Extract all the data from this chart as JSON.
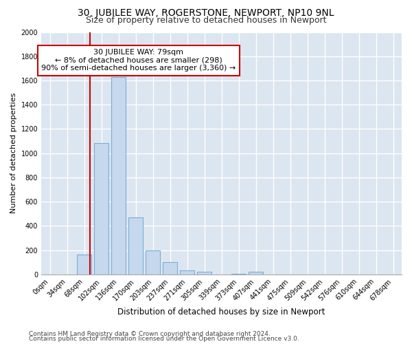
{
  "title": "30, JUBILEE WAY, ROGERSTONE, NEWPORT, NP10 9NL",
  "subtitle": "Size of property relative to detached houses in Newport",
  "xlabel": "Distribution of detached houses by size in Newport",
  "ylabel": "Number of detached properties",
  "footnote1": "Contains HM Land Registry data © Crown copyright and database right 2024.",
  "footnote2": "Contains public sector information licensed under the Open Government Licence v3.0.",
  "categories": [
    "0sqm",
    "34sqm",
    "68sqm",
    "102sqm",
    "136sqm",
    "170sqm",
    "203sqm",
    "237sqm",
    "271sqm",
    "305sqm",
    "339sqm",
    "373sqm",
    "407sqm",
    "441sqm",
    "475sqm",
    "509sqm",
    "542sqm",
    "576sqm",
    "610sqm",
    "644sqm",
    "678sqm"
  ],
  "values": [
    0,
    0,
    165,
    1085,
    1630,
    470,
    200,
    100,
    35,
    20,
    0,
    5,
    20,
    0,
    0,
    0,
    0,
    0,
    0,
    0,
    0
  ],
  "bar_color": "#c5d8ee",
  "bar_edge_color": "#7aadd4",
  "fig_background_color": "#ffffff",
  "plot_background_color": "#dce6f0",
  "grid_color": "#ffffff",
  "vline_x": 2.35,
  "vline_color": "#cc0000",
  "annotation_line1": "30 JUBILEE WAY: 79sqm",
  "annotation_line2": "← 8% of detached houses are smaller (298)",
  "annotation_line3": "90% of semi-detached houses are larger (3,360) →",
  "annotation_box_color": "#ffffff",
  "annotation_box_edge": "#cc0000",
  "ylim": [
    0,
    2000
  ],
  "yticks": [
    0,
    200,
    400,
    600,
    800,
    1000,
    1200,
    1400,
    1600,
    1800,
    2000
  ],
  "title_fontsize": 10,
  "subtitle_fontsize": 9,
  "tick_fontsize": 7,
  "ylabel_fontsize": 8,
  "xlabel_fontsize": 8.5,
  "annotation_fontsize": 8,
  "footnote_fontsize": 6.5
}
